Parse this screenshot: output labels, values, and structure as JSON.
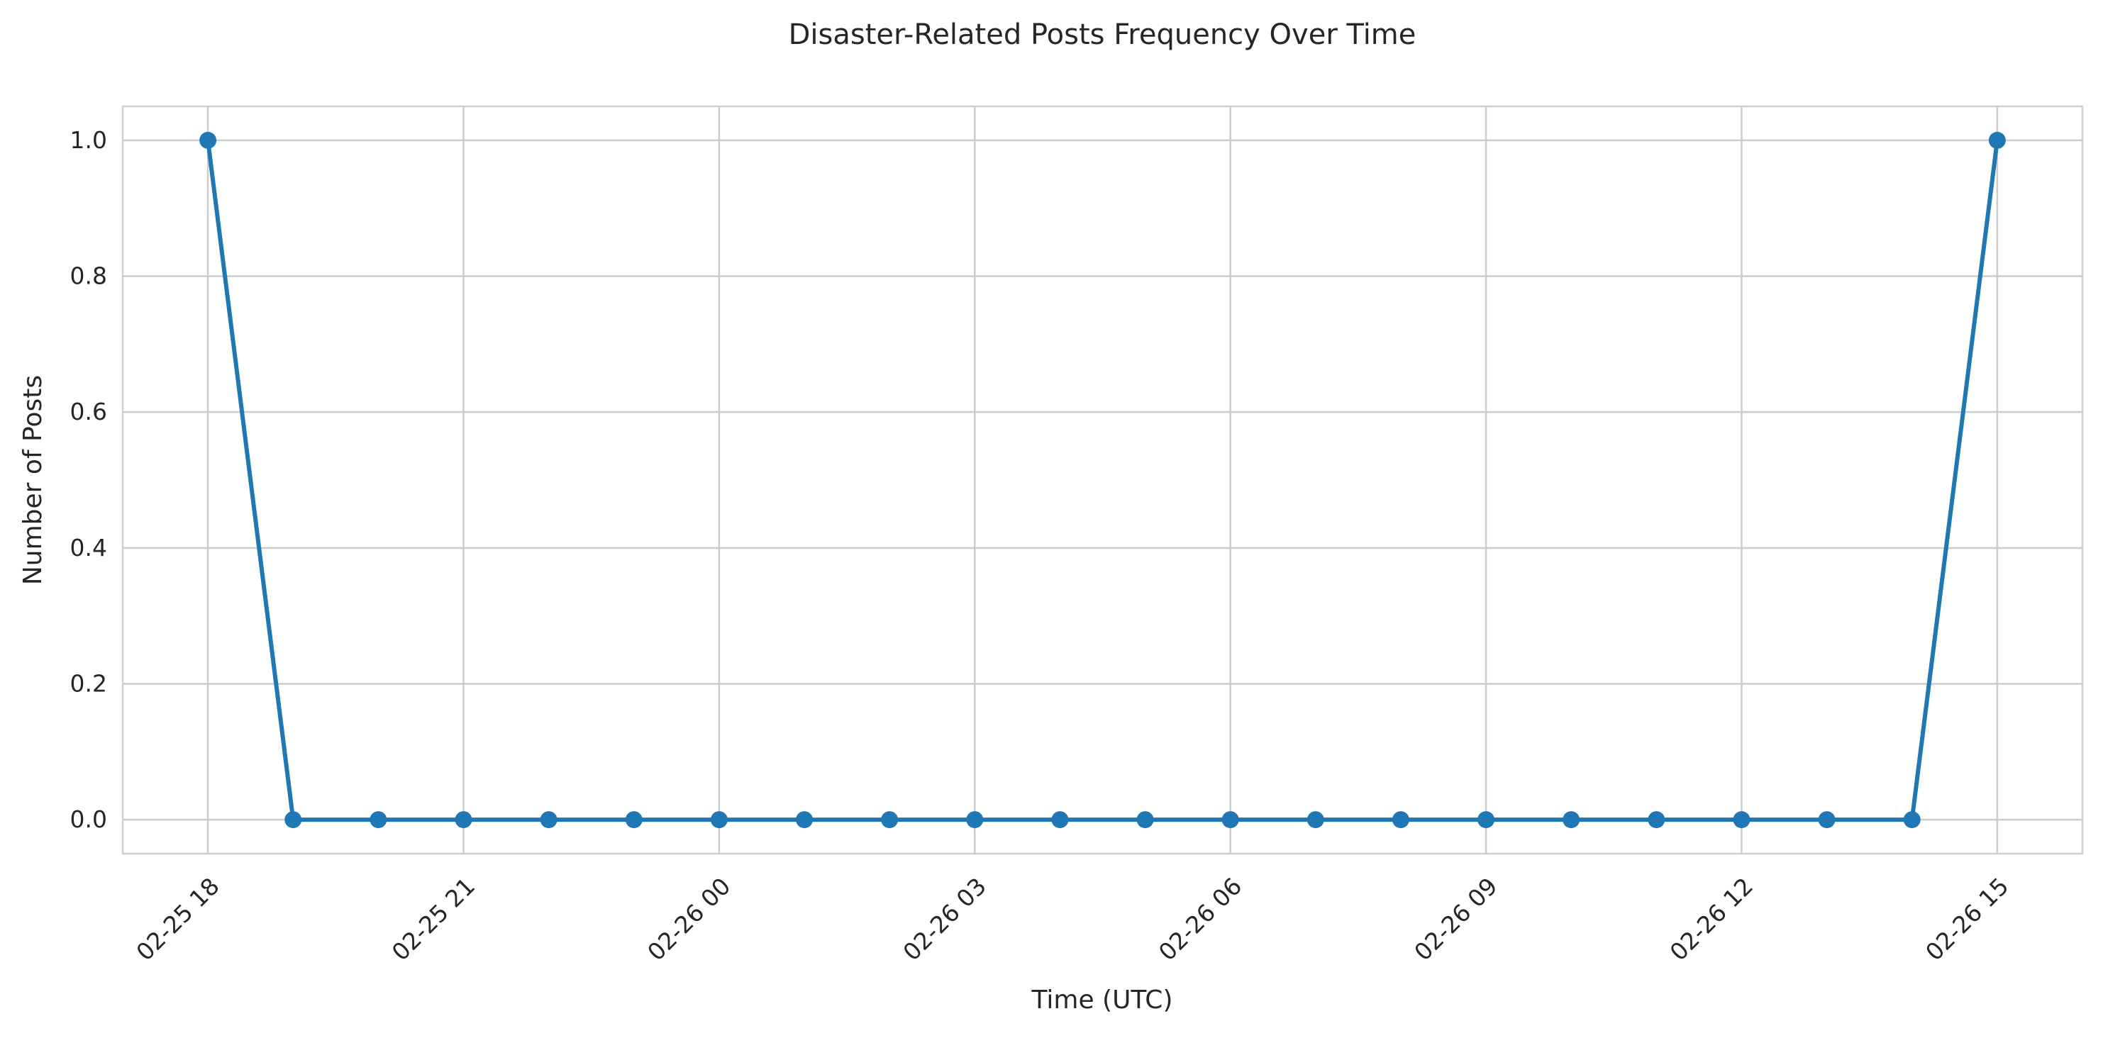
{
  "chart_data": {
    "type": "line",
    "title": "Disaster-Related Posts Frequency Over Time",
    "xlabel": "Time (UTC)",
    "ylabel": "Number of Posts",
    "x_ticks": [
      "02-25 18",
      "02-25 21",
      "02-26 00",
      "02-26 03",
      "02-26 06",
      "02-26 09",
      "02-26 12",
      "02-26 15"
    ],
    "y_ticks": [
      "0.0",
      "0.2",
      "0.4",
      "0.6",
      "0.8",
      "1.0"
    ],
    "ylim": [
      -0.05,
      1.05
    ],
    "xlim": [
      "02-25 17:00",
      "02-26 16:00"
    ],
    "grid": true,
    "series": [
      {
        "color": "#1f77b4",
        "marker": "circle",
        "x": [
          "02-25 18:00",
          "02-25 19:00",
          "02-25 20:00",
          "02-25 21:00",
          "02-25 22:00",
          "02-25 23:00",
          "02-26 00:00",
          "02-26 01:00",
          "02-26 02:00",
          "02-26 03:00",
          "02-26 04:00",
          "02-26 05:00",
          "02-26 06:00",
          "02-26 07:00",
          "02-26 08:00",
          "02-26 09:00",
          "02-26 10:00",
          "02-26 11:00",
          "02-26 12:00",
          "02-26 13:00",
          "02-26 14:00",
          "02-26 15:00"
        ],
        "values": [
          1,
          0,
          0,
          0,
          0,
          0,
          0,
          0,
          0,
          0,
          0,
          0,
          0,
          0,
          0,
          0,
          0,
          0,
          0,
          0,
          0,
          1
        ]
      }
    ]
  }
}
